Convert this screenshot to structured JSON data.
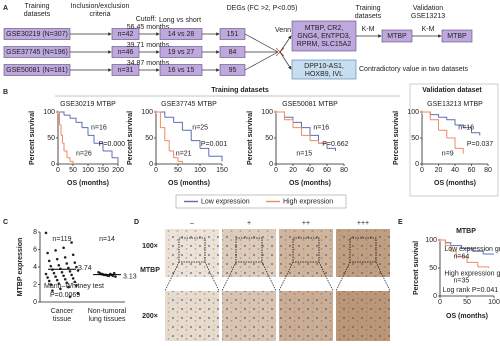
{
  "panels": {
    "A": {
      "label": "A",
      "headers": [
        [
          "Training",
          "datasets"
        ],
        [
          "Inclusion/exclusion",
          "criteria"
        ],
        [
          "Cutoff:"
        ],
        [
          "Long vs short"
        ],
        [
          "DEGs (FC >2, P<0.05)"
        ],
        [
          "Venn"
        ],
        [
          "Training",
          "datasets"
        ],
        [
          "K-M"
        ],
        [
          "Validation",
          "GSE13213"
        ],
        [
          "K-M"
        ]
      ],
      "rows": [
        {
          "dataset": "GSE30219 (N=307)",
          "n": "n=42",
          "cutoff": "56.45 months",
          "compare": "14 vs 28",
          "degs": 151
        },
        {
          "dataset": "GSE37745 (N=196)",
          "n": "n=46",
          "cutoff": "39.71 months",
          "compare": "19 vs 27",
          "degs": 84
        },
        {
          "dataset": "GSE50081 (N=181)",
          "n": "n=31",
          "cutoff": "34.87 months",
          "compare": "16 vs 15",
          "degs": 95
        }
      ],
      "genes_common": [
        "MTBP, CR2,",
        "GNG4, ENTPD3,",
        "RPRM, SLC15A2"
      ],
      "genes_contra": [
        "DPP10-AS1,",
        "HOXB9, IVL"
      ],
      "contra_note": "Contradictory value in two datasets",
      "result_training": "MTBP",
      "result_validation": "MTBP"
    },
    "B": {
      "label": "B",
      "group_training": "Training datasets",
      "group_validation": "Validation dataset",
      "legend": [
        {
          "name": "Low expression",
          "color": "#5b6fb5"
        },
        {
          "name": "High expression",
          "color": "#ef8a62"
        }
      ],
      "plots": [
        {
          "type": "km",
          "title": "GSE30219 MTBP",
          "ylabel": "Percent survival",
          "xlabel": "OS (months)",
          "xlim": [
            0,
            200
          ],
          "xticks": [
            0,
            50,
            100,
            150,
            200
          ],
          "ylim": [
            0,
            100
          ],
          "yticks": [
            0,
            50,
            100
          ],
          "series": [
            {
              "color": "#5b6fb5",
              "x": [
                0,
                20,
                40,
                60,
                80,
                100,
                120,
                150,
                180,
                200
              ],
              "y": [
                100,
                94,
                88,
                80,
                70,
                55,
                40,
                25,
                12,
                0
              ]
            },
            {
              "color": "#ef8a62",
              "x": [
                0,
                5,
                10,
                15,
                20,
                30,
                40,
                50
              ],
              "y": [
                100,
                75,
                55,
                40,
                25,
                12,
                5,
                0
              ]
            }
          ],
          "annotations": [
            "n=16",
            "n=26",
            "P=0.000"
          ]
        },
        {
          "type": "km",
          "title": "GSE37745 MTBP",
          "ylabel": "Percent survival",
          "xlabel": "OS (months)",
          "xlim": [
            0,
            150
          ],
          "xticks": [
            0,
            50,
            100,
            150
          ],
          "ylim": [
            0,
            100
          ],
          "yticks": [
            0,
            50,
            100
          ],
          "series": [
            {
              "color": "#5b6fb5",
              "x": [
                0,
                20,
                40,
                60,
                80,
                100,
                120,
                150
              ],
              "y": [
                100,
                90,
                80,
                65,
                45,
                30,
                15,
                5
              ]
            },
            {
              "color": "#ef8a62",
              "x": [
                0,
                10,
                20,
                30,
                40,
                50,
                60
              ],
              "y": [
                100,
                70,
                45,
                25,
                12,
                5,
                0
              ]
            }
          ],
          "annotations": [
            "n=25",
            "n=21",
            "P=0.001"
          ]
        },
        {
          "type": "km",
          "title": "GSE50081 MTBP",
          "ylabel": "Percent survival",
          "xlabel": "OS (months)",
          "xlim": [
            0,
            80
          ],
          "xticks": [
            0,
            20,
            40,
            60,
            80
          ],
          "ylim": [
            0,
            100
          ],
          "yticks": [
            0,
            50,
            100
          ],
          "series": [
            {
              "color": "#5b6fb5",
              "x": [
                0,
                10,
                20,
                30,
                40,
                50,
                60,
                70
              ],
              "y": [
                100,
                90,
                80,
                70,
                55,
                40,
                30,
                25
              ]
            },
            {
              "color": "#ef8a62",
              "x": [
                0,
                10,
                20,
                30,
                40,
                50,
                60
              ],
              "y": [
                100,
                85,
                70,
                55,
                45,
                40,
                38
              ]
            }
          ],
          "annotations": [
            "n=16",
            "n=15",
            "P=0.662"
          ]
        },
        {
          "type": "km",
          "title": "GSE13213 MTBP",
          "ylabel": "Percent survival",
          "xlabel": "OS (months)",
          "xlim": [
            0,
            80
          ],
          "xticks": [
            0,
            20,
            40,
            60,
            80
          ],
          "ylim": [
            0,
            100
          ],
          "yticks": [
            0,
            50,
            100
          ],
          "series": [
            {
              "color": "#5b6fb5",
              "x": [
                0,
                10,
                20,
                30,
                40,
                50,
                60,
                70
              ],
              "y": [
                100,
                95,
                90,
                85,
                75,
                70,
                60,
                55
              ]
            },
            {
              "color": "#ef8a62",
              "x": [
                0,
                10,
                20,
                30,
                40,
                50
              ],
              "y": [
                100,
                85,
                65,
                50,
                30,
                20
              ]
            }
          ],
          "annotations": [
            "n=16",
            "n=9",
            "P=0.037"
          ]
        }
      ]
    },
    "C": {
      "label": "C",
      "type": "scatter",
      "ylabel": "MTBP expression",
      "ylim": [
        0,
        8
      ],
      "yticks": [
        0,
        2,
        4,
        6,
        8
      ],
      "categories": [
        [
          "Cancer",
          "tissue"
        ],
        [
          "Non-tumoral",
          "lung tissues"
        ]
      ],
      "counts": [
        "n=119",
        "n=14"
      ],
      "means": [
        3.74,
        3.13
      ],
      "groups": [
        [
          7.9,
          6.8,
          6.2,
          5.9,
          5.6,
          5.4,
          5.1,
          4.9,
          4.7,
          4.5,
          4.4,
          4.2,
          4.1,
          4.0,
          3.9,
          3.8,
          3.7,
          3.6,
          3.5,
          3.4,
          3.3,
          3.2,
          3.1,
          3.0,
          2.9,
          2.8,
          2.7,
          2.6,
          2.5,
          2.4,
          2.3,
          2.2,
          2.1,
          2.0,
          1.9,
          1.7,
          1.5,
          1.3,
          1.0,
          0.6
        ],
        [
          3.4,
          3.3,
          3.2,
          3.2,
          3.1,
          3.1,
          3.1,
          3.0,
          3.0,
          3.2,
          3.1,
          3.0,
          3.3,
          2.9
        ]
      ],
      "test": "Mann–Whitney test",
      "p": "P=0.0069"
    },
    "D": {
      "label": "D",
      "columns": [
        "–",
        "+",
        "++",
        "+++"
      ],
      "rows": [
        "100×",
        "MTBP",
        "200×"
      ]
    },
    "E": {
      "label": "E",
      "title": "MTBP",
      "ylabel": "Percent survival",
      "xlabel": "OS (months)",
      "xlim": [
        0,
        100
      ],
      "xticks": [
        0,
        50,
        100
      ],
      "ylim": [
        0,
        100
      ],
      "yticks": [
        0,
        50,
        100
      ],
      "series": [
        {
          "color": "#5b6fb5",
          "x": [
            0,
            10,
            20,
            40,
            60,
            80,
            100
          ],
          "y": [
            100,
            95,
            90,
            85,
            80,
            75,
            75
          ]
        },
        {
          "color": "#ef8a62",
          "x": [
            0,
            10,
            20,
            30,
            50,
            70,
            90
          ],
          "y": [
            100,
            90,
            80,
            70,
            60,
            52,
            50
          ]
        }
      ],
      "annotations": [
        "Low expression group",
        "n=64",
        "High expression group",
        "n=35",
        "Log rank P=0.041"
      ]
    }
  }
}
